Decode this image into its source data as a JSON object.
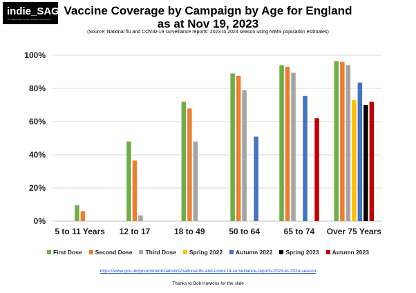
{
  "logo": {
    "text": "indie_SAGE",
    "tagline": "The Independent SAGE • Following the science"
  },
  "header": {
    "title_line1": "Vaccine Coverage by Campaign by Age for England",
    "title_line2": "as at Nov 19, 2023",
    "source": "(Source: National flu and COVID-19 surveillance reports: 2023 to 2024 season using NIMS population estimates)"
  },
  "footer": {
    "url": "https://www.gov.uk/government/statistics/national-flu-and-covid-19-surveillance-reports-2023-to-2024-season",
    "credit": "Thanks to Bob Hawkins for the slide"
  },
  "chart_data": {
    "type": "bar",
    "categories": [
      "5 to 11 Years",
      "12 to 17",
      "18 to 49",
      "50 to 64",
      "65 to 74",
      "Over 75 Years"
    ],
    "ylim": [
      0,
      100
    ],
    "yticks": [
      "0%",
      "20%",
      "40%",
      "60%",
      "80%",
      "100%"
    ],
    "grid": true,
    "legend_position": "bottom",
    "series": [
      {
        "name": "First Dose",
        "color": "#70ad47",
        "values": [
          9.5,
          48,
          72,
          89,
          94,
          96.5
        ]
      },
      {
        "name": "Second Dose",
        "color": "#ed7d31",
        "values": [
          6,
          36.5,
          68,
          87.5,
          93,
          96
        ]
      },
      {
        "name": "Third Dose",
        "color": "#a5a5a5",
        "values": [
          null,
          3.5,
          48,
          79,
          89.5,
          94
        ]
      },
      {
        "name": "Spring 2022",
        "color": "#ffc000",
        "values": [
          null,
          null,
          null,
          null,
          null,
          73
        ]
      },
      {
        "name": "Autumn 2022",
        "color": "#4472c4",
        "values": [
          null,
          null,
          null,
          51,
          75.5,
          83.5
        ]
      },
      {
        "name": "Spring 2023",
        "color": "#000000",
        "values": [
          null,
          null,
          null,
          null,
          null,
          70
        ]
      },
      {
        "name": "Autumn 2023",
        "color": "#c00000",
        "values": [
          null,
          null,
          null,
          null,
          62,
          72
        ]
      }
    ]
  }
}
